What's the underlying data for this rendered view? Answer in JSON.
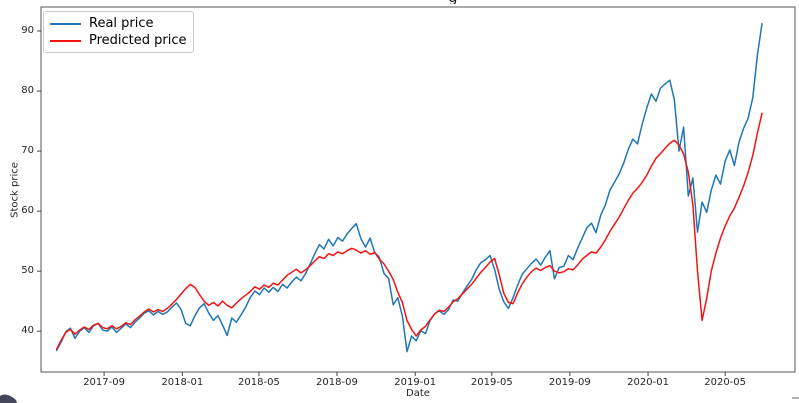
{
  "figure": {
    "background": "#ffffff",
    "title_fragment": {
      "visible_glyph": "g"
    },
    "spine_color": "#555555",
    "tick_color": "#444444",
    "text_color": "#262626"
  },
  "chart_data": {
    "type": "line",
    "title": "",
    "xlabel": "Date",
    "ylabel": "Stock price",
    "grid": false,
    "legend": {
      "position": "upper left",
      "entries": [
        "Real price",
        "Predicted price"
      ]
    },
    "x_axis": {
      "tick_labels": [
        "2017-09",
        "2018-01",
        "2018-05",
        "2018-09",
        "2019-01",
        "2019-05",
        "2019-09",
        "2020-01",
        "2020-05"
      ],
      "tick_values": [
        2017.664,
        2018.0,
        2018.329,
        2018.664,
        2019.0,
        2019.329,
        2019.664,
        2020.0,
        2020.331
      ],
      "xlim": [
        2017.393,
        2020.631
      ],
      "x_start": 2017.46,
      "x_step_years": 0.0198
    },
    "y_axis": {
      "tick_values": [
        40,
        50,
        60,
        70,
        80,
        90
      ],
      "ylim": [
        33.2,
        94.0
      ]
    },
    "series": [
      {
        "name": "Real price",
        "color": "#1f77b4",
        "values": [
          36.8,
          38.2,
          39.9,
          40.5,
          38.8,
          40.0,
          40.6,
          39.8,
          40.9,
          41.3,
          40.2,
          40.0,
          40.7,
          39.8,
          40.5,
          41.2,
          40.6,
          41.5,
          42.2,
          43.0,
          43.4,
          42.7,
          43.3,
          42.8,
          43.2,
          44.0,
          44.7,
          43.6,
          41.3,
          40.9,
          42.6,
          43.9,
          44.6,
          43.0,
          41.8,
          42.6,
          41.0,
          39.3,
          42.2,
          41.5,
          42.7,
          44.0,
          45.6,
          46.7,
          46.1,
          47.2,
          46.5,
          47.3,
          46.6,
          47.8,
          47.2,
          48.2,
          49.0,
          48.4,
          49.6,
          51.2,
          52.9,
          54.4,
          53.7,
          55.3,
          54.2,
          55.6,
          55.0,
          56.2,
          57.1,
          57.9,
          55.4,
          54.0,
          55.5,
          53.1,
          52.3,
          49.6,
          48.8,
          44.4,
          45.6,
          42.5,
          36.6,
          39.2,
          38.4,
          40.1,
          39.6,
          41.8,
          42.9,
          43.4,
          42.8,
          43.6,
          45.2,
          45.0,
          46.3,
          47.5,
          48.6,
          50.2,
          51.4,
          51.9,
          52.6,
          50.3,
          47.0,
          44.9,
          43.8,
          45.6,
          47.7,
          49.5,
          50.4,
          51.3,
          52.0,
          51.0,
          52.3,
          53.4,
          48.7,
          50.6,
          50.8,
          52.6,
          51.9,
          53.8,
          55.5,
          57.2,
          58.0,
          56.4,
          59.3,
          61.0,
          63.5,
          64.8,
          66.2,
          68.0,
          70.3,
          72.0,
          71.2,
          74.5,
          77.2,
          79.5,
          78.3,
          80.5,
          81.2,
          81.8,
          78.5,
          70.0,
          74.0,
          62.5,
          65.5,
          56.5,
          61.5,
          59.8,
          63.5,
          66.0,
          64.5,
          68.3,
          70.2,
          67.6,
          71.5,
          73.8,
          75.5,
          78.9,
          86.0,
          91.2
        ]
      },
      {
        "name": "Predicted price",
        "color": "#f31414",
        "values": [
          37.0,
          38.5,
          39.8,
          40.3,
          39.5,
          40.2,
          40.7,
          40.3,
          41.0,
          41.3,
          40.6,
          40.4,
          40.9,
          40.4,
          40.8,
          41.4,
          41.1,
          41.9,
          42.5,
          43.2,
          43.7,
          43.2,
          43.6,
          43.3,
          43.8,
          44.5,
          45.3,
          46.2,
          47.1,
          47.8,
          47.3,
          46.1,
          45.0,
          44.3,
          44.8,
          44.2,
          45.0,
          44.3,
          43.9,
          44.7,
          45.4,
          46.0,
          46.6,
          47.4,
          47.0,
          47.7,
          47.3,
          48.0,
          47.7,
          48.5,
          49.3,
          49.8,
          50.3,
          49.7,
          50.2,
          50.9,
          51.7,
          52.4,
          52.1,
          52.9,
          52.6,
          53.2,
          52.9,
          53.4,
          53.8,
          53.5,
          53.0,
          53.4,
          52.8,
          53.1,
          52.0,
          51.2,
          50.0,
          48.6,
          46.5,
          44.8,
          41.8,
          40.3,
          39.2,
          40.2,
          40.8,
          41.9,
          42.9,
          43.5,
          43.3,
          44.0,
          44.9,
          45.4,
          46.2,
          47.0,
          47.8,
          48.8,
          49.8,
          50.6,
          51.5,
          52.1,
          49.4,
          46.3,
          44.8,
          44.6,
          46.4,
          47.9,
          49.0,
          49.9,
          50.5,
          50.1,
          50.6,
          50.9,
          50.0,
          49.7,
          49.9,
          50.4,
          50.2,
          51.0,
          52.0,
          52.6,
          53.2,
          53.0,
          54.0,
          55.2,
          56.6,
          57.8,
          59.0,
          60.4,
          61.8,
          63.0,
          63.8,
          64.8,
          66.0,
          67.5,
          68.8,
          69.6,
          70.5,
          71.3,
          71.8,
          71.0,
          69.5,
          66.5,
          61.0,
          50.0,
          41.8,
          45.5,
          50.0,
          53.0,
          55.5,
          57.5,
          59.2,
          60.5,
          62.3,
          64.2,
          66.5,
          69.3,
          73.0,
          76.3
        ]
      }
    ]
  }
}
